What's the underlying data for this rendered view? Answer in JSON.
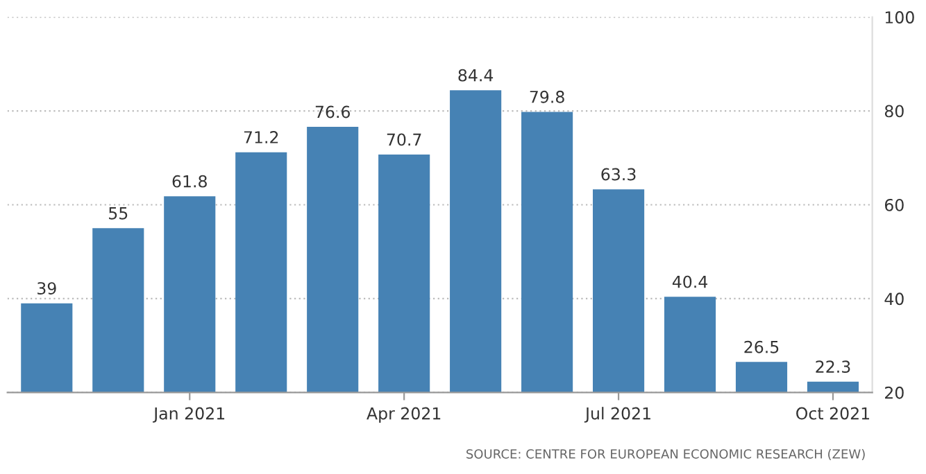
{
  "chart_data": {
    "type": "bar",
    "categories": [
      null,
      null,
      "Jan 2021",
      null,
      null,
      "Apr 2021",
      null,
      null,
      "Jul 2021",
      null,
      null,
      "Oct 2021"
    ],
    "values": [
      39,
      55,
      61.8,
      71.2,
      76.6,
      70.7,
      84.4,
      79.8,
      63.3,
      40.4,
      26.5,
      22.3
    ],
    "color": "#4682b4",
    "ylim": [
      20,
      100
    ],
    "yticks": [
      20,
      40,
      60,
      80,
      100
    ],
    "grid": "y",
    "data_labels": true,
    "annotations": [
      "SOURCE: CENTRE FOR EUROPEAN ECONOMIC RESEARCH (ZEW)"
    ]
  }
}
